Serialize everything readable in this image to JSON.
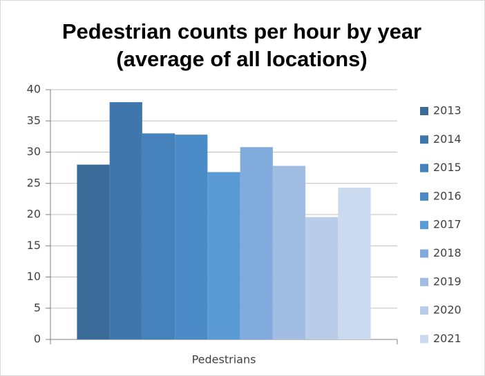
{
  "chart_data": {
    "type": "bar",
    "title": "Pedestrian counts per hour by year (average of all locations)",
    "categories": [
      "Pedestrians"
    ],
    "series": [
      {
        "name": "2013",
        "color": "#3a6b99",
        "values": [
          28
        ]
      },
      {
        "name": "2014",
        "color": "#3f77ad",
        "values": [
          38
        ]
      },
      {
        "name": "2015",
        "color": "#4582bc",
        "values": [
          33
        ]
      },
      {
        "name": "2016",
        "color": "#4a8ac6",
        "values": [
          32.8
        ]
      },
      {
        "name": "2017",
        "color": "#5b9bd5",
        "values": [
          26.8
        ]
      },
      {
        "name": "2018",
        "color": "#80abdc",
        "values": [
          30.8
        ]
      },
      {
        "name": "2019",
        "color": "#a1bde2",
        "values": [
          27.8
        ]
      },
      {
        "name": "2020",
        "color": "#b9cce8",
        "values": [
          19.6
        ]
      },
      {
        "name": "2021",
        "color": "#cbdaee",
        "values": [
          24.3
        ]
      }
    ],
    "ylim": [
      0,
      40
    ],
    "yticks": [
      0,
      5,
      10,
      15,
      20,
      25,
      30,
      35,
      40
    ],
    "grid": true,
    "legend": "right"
  }
}
